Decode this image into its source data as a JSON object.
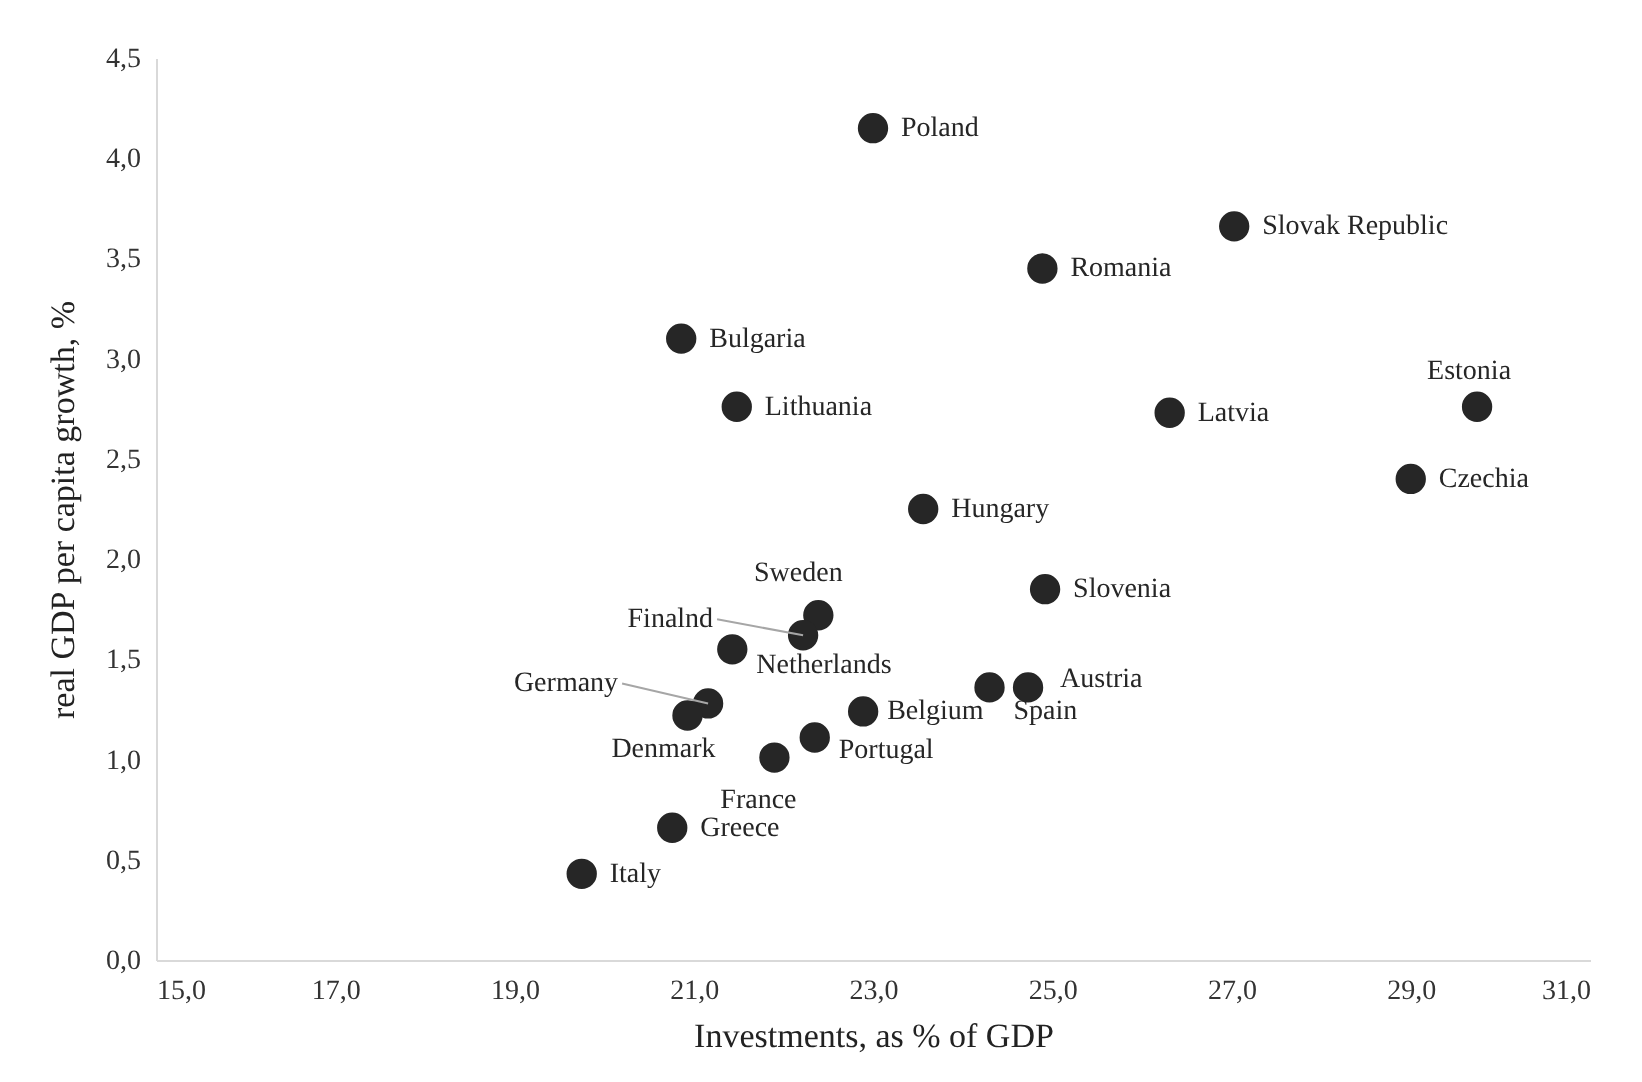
{
  "chart_data": {
    "type": "scatter",
    "xlabel": "Investments, as % of GDP",
    "ylabel": "real GDP per capita growth, %",
    "x": [
      23.0,
      27.03,
      24.89,
      20.86,
      21.48,
      26.31,
      29.74,
      29.0,
      23.56,
      24.92,
      22.39,
      22.22,
      21.43,
      21.16,
      20.93,
      22.89,
      24.3,
      24.73,
      22.35,
      21.9,
      20.76,
      19.75
    ],
    "series": [
      {
        "color": "#262626",
        "values": [
          4.15,
          3.66,
          3.45,
          3.1,
          2.76,
          2.73,
          2.76,
          2.4,
          2.25,
          1.85,
          1.72,
          1.62,
          1.55,
          1.28,
          1.22,
          1.24,
          1.36,
          1.36,
          1.11,
          1.01,
          0.66,
          0.43
        ]
      }
    ],
    "annotations": [
      {
        "text": "Poland",
        "x": 23.0,
        "y": 4.15
      },
      {
        "text": "Slovak Republic",
        "x": 27.03,
        "y": 3.66
      },
      {
        "text": "Romania",
        "x": 24.89,
        "y": 3.45
      },
      {
        "text": "Bulgaria",
        "x": 20.86,
        "y": 3.1
      },
      {
        "text": "Lithuania",
        "x": 21.48,
        "y": 2.76
      },
      {
        "text": "Latvia",
        "x": 26.31,
        "y": 2.73
      },
      {
        "text": "Estonia",
        "x": 29.74,
        "y": 2.76
      },
      {
        "text": "Czechia",
        "x": 29.0,
        "y": 2.4
      },
      {
        "text": "Hungary",
        "x": 23.56,
        "y": 2.25
      },
      {
        "text": "Slovenia",
        "x": 24.92,
        "y": 1.85
      },
      {
        "text": "Sweden",
        "x": 22.39,
        "y": 1.72
      },
      {
        "text": "Finalnd",
        "x": 22.22,
        "y": 1.62
      },
      {
        "text": "Netherlands",
        "x": 21.43,
        "y": 1.55
      },
      {
        "text": "Germany",
        "x": 21.16,
        "y": 1.28
      },
      {
        "text": "Denmark",
        "x": 20.93,
        "y": 1.22
      },
      {
        "text": "Belgium",
        "x": 22.89,
        "y": 1.24
      },
      {
        "text": "Spain",
        "x": 24.3,
        "y": 1.36
      },
      {
        "text": "Austria",
        "x": 24.73,
        "y": 1.36
      },
      {
        "text": "Portugal",
        "x": 22.35,
        "y": 1.11
      },
      {
        "text": "France",
        "x": 21.9,
        "y": 1.01
      },
      {
        "text": "Greece",
        "x": 20.76,
        "y": 0.66
      },
      {
        "text": "Italy",
        "x": 19.75,
        "y": 0.43
      }
    ],
    "xlim": [
      15,
      31
    ],
    "xticks": [
      {
        "value": 15,
        "label": "15,0"
      },
      {
        "value": 17,
        "label": "17,0"
      },
      {
        "value": 19,
        "label": "19,0"
      },
      {
        "value": 21,
        "label": "21,0"
      },
      {
        "value": 23,
        "label": "23,0"
      },
      {
        "value": 25,
        "label": "25,0"
      },
      {
        "value": 27,
        "label": "27,0"
      },
      {
        "value": 29,
        "label": "29,0"
      },
      {
        "value": 31,
        "label": "31,0"
      }
    ],
    "ylim": [
      0,
      4.5
    ],
    "yticks": [
      {
        "value": 0,
        "label": "0,0"
      },
      {
        "value": 0.5,
        "label": "0,5"
      },
      {
        "value": 1,
        "label": "1,0"
      },
      {
        "value": 1.5,
        "label": "1,5"
      },
      {
        "value": 2,
        "label": "2,0"
      },
      {
        "value": 2.5,
        "label": "2,5"
      },
      {
        "value": 3,
        "label": "3,0"
      },
      {
        "value": 3.5,
        "label": "3,5"
      },
      {
        "value": 4,
        "label": "4,0"
      },
      {
        "value": 4.5,
        "label": "4,5"
      }
    ],
    "marker": "circle",
    "grid": false,
    "legend": false
  }
}
